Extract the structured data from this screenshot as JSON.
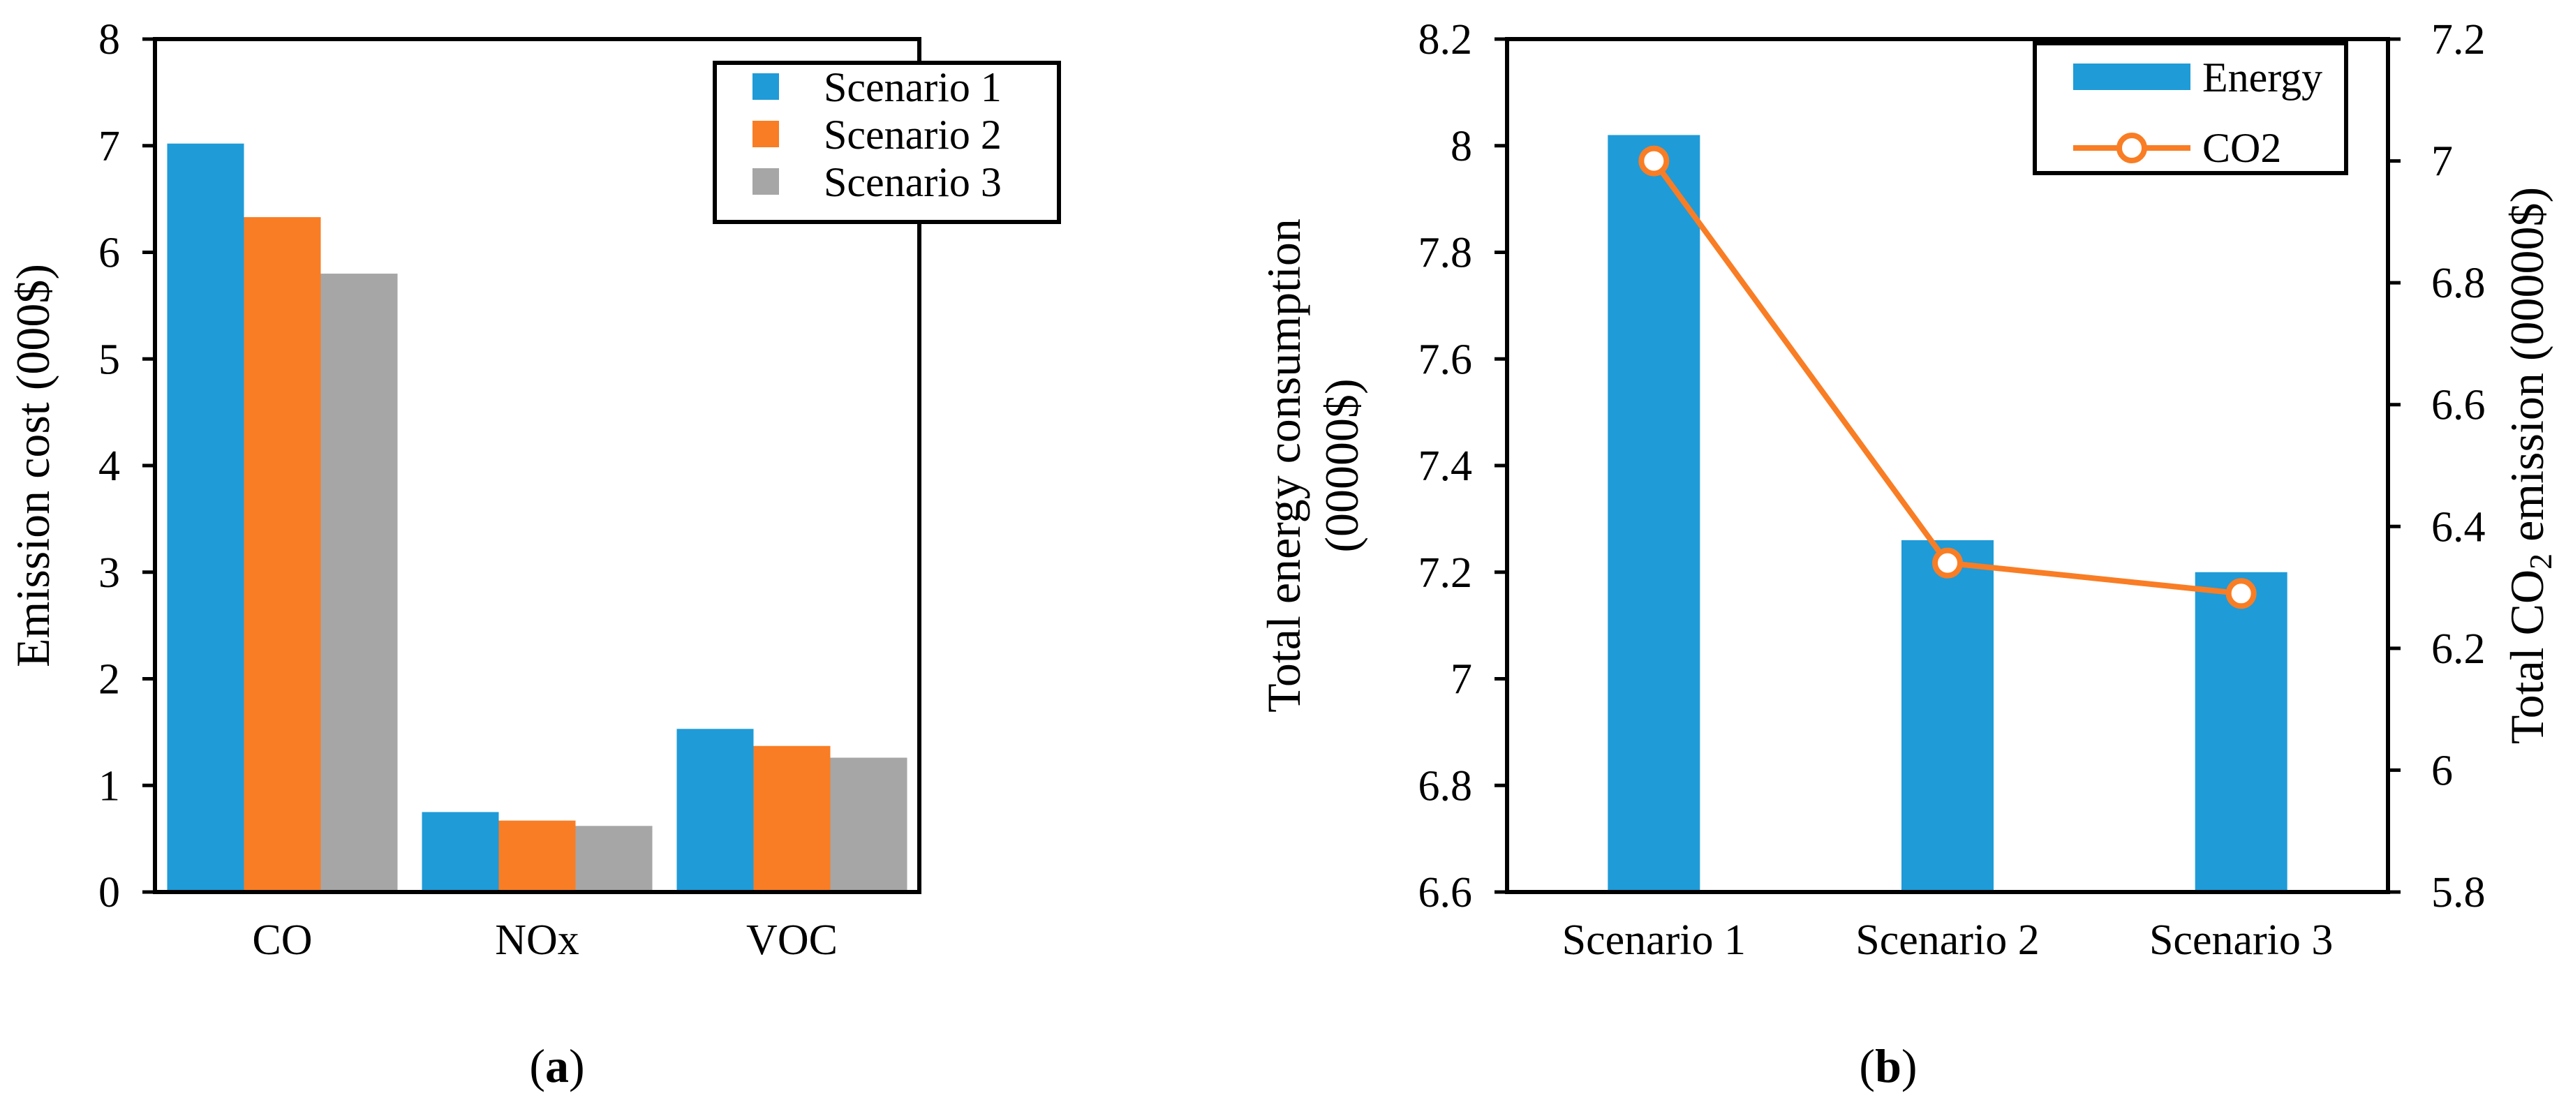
{
  "chart_data": [
    {
      "panel": "a",
      "caption_letter": "a",
      "type": "bar",
      "ylabel": "Emission cost (000$)",
      "ylim": [
        0,
        8
      ],
      "yticks": [
        0,
        1,
        2,
        3,
        4,
        5,
        6,
        7,
        8
      ],
      "yticks_labels": [
        "0",
        "1",
        "2",
        "3",
        "4",
        "5",
        "6",
        "7",
        "8"
      ],
      "categories": [
        "CO",
        "NOx",
        "VOC"
      ],
      "series": [
        {
          "name": "Scenario 1",
          "color": "#1f9bd8",
          "values": [
            7.02,
            0.75,
            1.53
          ]
        },
        {
          "name": "Scenario 2",
          "color": "#f97d24",
          "values": [
            6.33,
            0.67,
            1.37
          ]
        },
        {
          "name": "Scenario 3",
          "color": "#a6a6a6",
          "values": [
            5.8,
            0.62,
            1.26
          ]
        }
      ],
      "legend_position": "top-right",
      "grid": false
    },
    {
      "panel": "b",
      "caption_letter": "b",
      "type": "bar+line",
      "ylabel_line1": "Total energy consumption",
      "ylabel_line2": "(00000$)",
      "y2label_prefix": "Total CO",
      "y2label_subscript": "2",
      "y2label_suffix": " emission (00000$)",
      "ylim": [
        6.6,
        8.2
      ],
      "yticks": [
        6.6,
        6.8,
        7,
        7.2,
        7.4,
        7.6,
        7.8,
        8,
        8.2
      ],
      "yticks_labels": [
        "6.6",
        "6.8",
        "7",
        "7.2",
        "7.4",
        "7.6",
        "7.8",
        "8",
        "8.2"
      ],
      "y2lim": [
        5.8,
        7.2
      ],
      "y2ticks": [
        5.8,
        6,
        6.2,
        6.4,
        6.6,
        6.8,
        7,
        7.2
      ],
      "y2ticks_labels": [
        "5.8",
        "6",
        "6.2",
        "6.4",
        "6.6",
        "6.8",
        "7",
        "7.2"
      ],
      "categories": [
        "Scenario 1",
        "Scenario 2",
        "Scenario 3"
      ],
      "series": [
        {
          "name": "Energy",
          "type": "bar",
          "axis": "left",
          "color": "#1f9bd8",
          "values": [
            8.02,
            7.26,
            7.2
          ]
        },
        {
          "name": "CO2",
          "type": "line",
          "axis": "right",
          "color": "#f97d24",
          "marker": "open-circle",
          "values": [
            7.0,
            6.34,
            6.29
          ]
        }
      ],
      "legend_position": "top-right",
      "grid": false
    }
  ]
}
